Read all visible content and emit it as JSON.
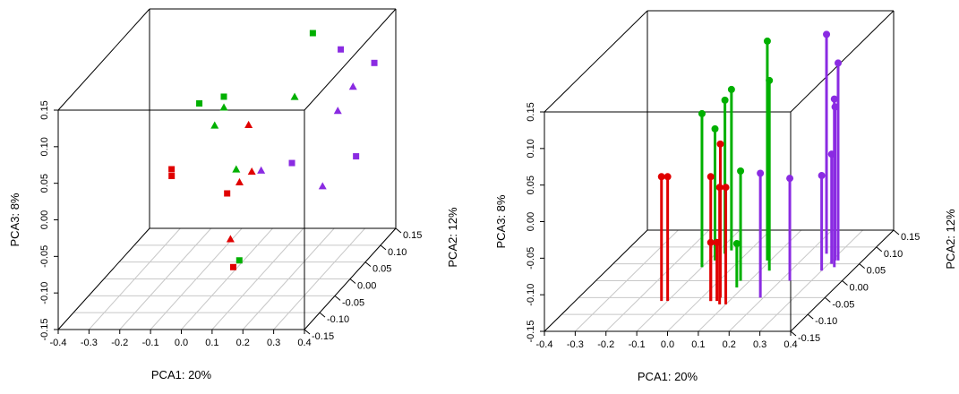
{
  "chart_data": [
    {
      "type": "scatter",
      "xlabel": "PCA1: 20%",
      "ylabel": "PCA2: 12%",
      "zlabel": "PCA3: 8%",
      "x_ticks": [
        "-0.4",
        "-0.3",
        "-0.2",
        "-0.1",
        "0.0",
        "0.1",
        "0.2",
        "0.3",
        "0.4"
      ],
      "y_ticks": [
        "-0.15",
        "-0.10",
        "-0.05",
        "0.00",
        "0.05",
        "0.10",
        "0.15"
      ],
      "z_ticks": [
        "-0.15",
        "-0.10",
        "-0.05",
        "0.00",
        "0.05",
        "0.10",
        "0.15"
      ],
      "xlim": [
        -0.4,
        0.4
      ],
      "ylim": [
        -0.15,
        0.15
      ],
      "zlim": [
        -0.15,
        0.15
      ],
      "colors": {
        "red": "#e00000",
        "green": "#00b000",
        "purple": "#8a2be2"
      },
      "points": [
        {
          "x": 0.18,
          "y": 0.1,
          "z": 0.14,
          "color": "green",
          "shape": "square"
        },
        {
          "x": -0.03,
          "y": 0.02,
          "z": 0.09,
          "color": "green",
          "shape": "square"
        },
        {
          "x": -0.09,
          "y": 0.0,
          "z": 0.09,
          "color": "green",
          "shape": "square"
        },
        {
          "x": 0.2,
          "y": 0.02,
          "z": 0.09,
          "color": "green",
          "shape": "triangle"
        },
        {
          "x": -0.02,
          "y": 0.01,
          "z": 0.08,
          "color": "green",
          "shape": "triangle"
        },
        {
          "x": -0.04,
          "y": 0.0,
          "z": 0.06,
          "color": "green",
          "shape": "triangle"
        },
        {
          "x": 0.03,
          "y": 0.0,
          "z": 0.0,
          "color": "green",
          "shape": "triangle"
        },
        {
          "x": 0.05,
          "y": -0.01,
          "z": -0.12,
          "color": "green",
          "shape": "square"
        },
        {
          "x": 0.09,
          "y": -0.02,
          "z": 0.07,
          "color": "red",
          "shape": "triangle"
        },
        {
          "x": -0.18,
          "y": 0.0,
          "z": 0.0,
          "color": "red",
          "shape": "square"
        },
        {
          "x": -0.16,
          "y": -0.02,
          "z": 0.0,
          "color": "red",
          "shape": "square"
        },
        {
          "x": 0.05,
          "y": -0.05,
          "z": -0.01,
          "color": "red",
          "shape": "square"
        },
        {
          "x": 0.1,
          "y": -0.06,
          "z": 0.01,
          "color": "red",
          "shape": "triangle"
        },
        {
          "x": 0.13,
          "y": -0.05,
          "z": 0.02,
          "color": "red",
          "shape": "triangle"
        },
        {
          "x": 0.13,
          "y": -0.12,
          "z": -0.04,
          "color": "red",
          "shape": "triangle"
        },
        {
          "x": 0.05,
          "y": -0.03,
          "z": -0.12,
          "color": "red",
          "shape": "square"
        },
        {
          "x": 0.34,
          "y": 0.03,
          "z": 0.15,
          "color": "purple",
          "shape": "square"
        },
        {
          "x": 0.36,
          "y": 0.0,
          "z": 0.08,
          "color": "purple",
          "shape": "triangle"
        },
        {
          "x": 0.36,
          "y": 0.05,
          "z": 0.09,
          "color": "purple",
          "shape": "triangle"
        },
        {
          "x": 0.36,
          "y": 0.12,
          "z": 0.09,
          "color": "purple",
          "shape": "square"
        },
        {
          "x": 0.36,
          "y": 0.06,
          "z": -0.01,
          "color": "purple",
          "shape": "square"
        },
        {
          "x": 0.36,
          "y": -0.05,
          "z": 0.0,
          "color": "purple",
          "shape": "triangle"
        },
        {
          "x": 0.3,
          "y": -0.09,
          "z": 0.05,
          "color": "purple",
          "shape": "square"
        },
        {
          "x": 0.2,
          "y": -0.09,
          "z": 0.04,
          "color": "purple",
          "shape": "triangle"
        }
      ]
    },
    {
      "type": "scatter",
      "xlabel": "PCA1: 20%",
      "ylabel": "PCA2: 12%",
      "zlabel": "PCA3: 8%",
      "x_ticks": [
        "-0.4",
        "-0.3",
        "-0.2",
        "-0.1",
        "0.0",
        "0.1",
        "0.2",
        "0.3",
        "0.4"
      ],
      "y_ticks": [
        "-0.15",
        "-0.10",
        "-0.05",
        "0.00",
        "0.05",
        "0.10",
        "0.15"
      ],
      "z_ticks": [
        "-0.15",
        "-0.10",
        "-0.05",
        "0.00",
        "0.05",
        "0.10",
        "0.15"
      ],
      "xlim": [
        -0.4,
        0.4
      ],
      "ylim": [
        -0.15,
        0.15
      ],
      "zlim": [
        -0.15,
        0.15
      ],
      "drop_lines": true,
      "colors": {
        "red": "#e00000",
        "green": "#00b000",
        "purple": "#8a2be2"
      },
      "points": [
        {
          "x": -0.1,
          "y": 0.04,
          "z": 0.06,
          "color": "green"
        },
        {
          "x": -0.08,
          "y": 0.06,
          "z": 0.03,
          "color": "green"
        },
        {
          "x": -0.07,
          "y": 0.08,
          "z": 0.06,
          "color": "green"
        },
        {
          "x": -0.06,
          "y": 0.09,
          "z": 0.07,
          "color": "green"
        },
        {
          "x": 0.09,
          "y": 0.06,
          "z": 0.15,
          "color": "green"
        },
        {
          "x": 0.13,
          "y": 0.03,
          "z": 0.11,
          "color": "green"
        },
        {
          "x": 0.07,
          "y": 0.0,
          "z": 0.0,
          "color": "green"
        },
        {
          "x": 0.08,
          "y": -0.02,
          "z": -0.09,
          "color": "green"
        },
        {
          "x": -0.12,
          "y": -0.06,
          "z": 0.02,
          "color": "red"
        },
        {
          "x": -0.1,
          "y": -0.06,
          "z": 0.02,
          "color": "red"
        },
        {
          "x": 0.06,
          "y": -0.05,
          "z": 0.06,
          "color": "red"
        },
        {
          "x": 0.04,
          "y": -0.06,
          "z": 0.02,
          "color": "red"
        },
        {
          "x": 0.08,
          "y": -0.07,
          "z": 0.01,
          "color": "red"
        },
        {
          "x": 0.1,
          "y": -0.07,
          "z": 0.01,
          "color": "red"
        },
        {
          "x": 0.04,
          "y": -0.06,
          "z": -0.07,
          "color": "red"
        },
        {
          "x": 0.06,
          "y": -0.06,
          "z": -0.07,
          "color": "red"
        },
        {
          "x": 0.26,
          "y": 0.08,
          "z": 0.15,
          "color": "purple"
        },
        {
          "x": 0.32,
          "y": 0.06,
          "z": 0.12,
          "color": "purple"
        },
        {
          "x": 0.31,
          "y": 0.06,
          "z": 0.06,
          "color": "purple"
        },
        {
          "x": 0.33,
          "y": 0.04,
          "z": 0.08,
          "color": "purple"
        },
        {
          "x": 0.31,
          "y": 0.05,
          "z": 0.0,
          "color": "purple"
        },
        {
          "x": 0.3,
          "y": 0.03,
          "z": -0.02,
          "color": "purple"
        },
        {
          "x": 0.23,
          "y": 0.0,
          "z": -0.01,
          "color": "purple"
        },
        {
          "x": 0.19,
          "y": -0.05,
          "z": 0.02,
          "color": "purple"
        }
      ]
    }
  ]
}
